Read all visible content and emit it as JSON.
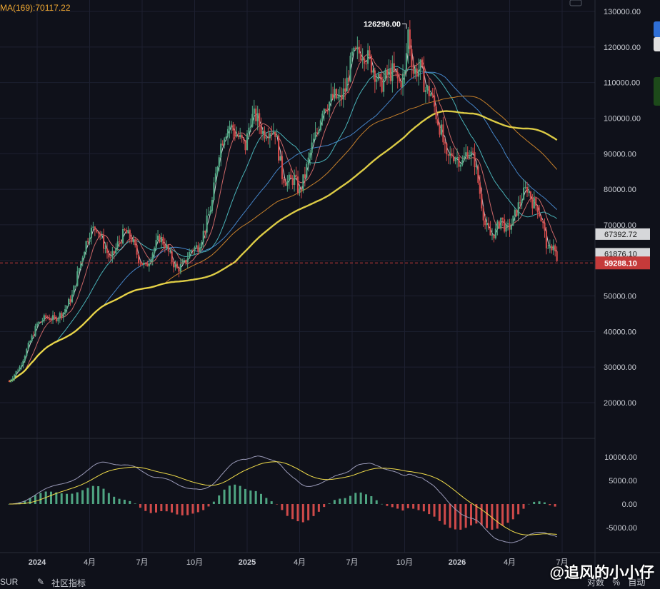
{
  "header": {
    "ma_label": "MA(169):70117.22"
  },
  "right_axis_controls": {
    "scale_labels": [
      "对数",
      "%",
      "自动"
    ]
  },
  "bottom_bar": {
    "indicator_fragment": "SUR",
    "community_label": "社区指标"
  },
  "watermark": {
    "text": "@追风的小小仔"
  },
  "colors": {
    "up": "#4fa582",
    "down": "#d04a4a",
    "price_tag": "#c53a3a",
    "label_tag": "#d6d7da"
  },
  "chart_data": [
    {
      "type": "candlestick",
      "title": "",
      "y_ticks": [
        20000,
        30000,
        40000,
        50000,
        60000,
        70000,
        80000,
        90000,
        100000,
        110000,
        120000,
        130000
      ],
      "y_tick_labels": [
        "20000.00",
        "30000.00",
        "40000.00",
        "50000.00",
        "60000.00",
        "70000.00",
        "80000.00",
        "90000.00",
        "100000.00",
        "110000.00",
        "120000.00",
        "130000.00"
      ],
      "ylim": [
        10000,
        132000
      ],
      "x_tick_labels": [
        "2024",
        "4月",
        "7月",
        "10月",
        "2025",
        "4月",
        "7月",
        "10月",
        "2026",
        "4月",
        "7月"
      ],
      "x_ticks_month_index": [
        0,
        3,
        6,
        9,
        12,
        15,
        18,
        21,
        24,
        27,
        30
      ],
      "current_price": 59288.1,
      "current_price_label": "59288.10",
      "high_marker": {
        "value": 126296.0,
        "label": "126296.00",
        "month_index": 21.1
      },
      "price_labels": [
        {
          "value": 67392.72,
          "label": "67392.72"
        },
        {
          "value": 61876.1,
          "label": "61876.10"
        }
      ],
      "price_path": [
        [
          -1.6,
          26000
        ],
        [
          -1.0,
          30000
        ],
        [
          -0.5,
          36000
        ],
        [
          0,
          42000
        ],
        [
          0.5,
          44000
        ],
        [
          1,
          43500
        ],
        [
          1.5,
          45500
        ],
        [
          2,
          50000
        ],
        [
          2.3,
          56000
        ],
        [
          2.7,
          63500
        ],
        [
          3.0,
          68000
        ],
        [
          3.4,
          69500
        ],
        [
          3.8,
          64500
        ],
        [
          4.2,
          60000
        ],
        [
          4.6,
          64500
        ],
        [
          5.0,
          68000
        ],
        [
          5.4,
          66000
        ],
        [
          5.8,
          60500
        ],
        [
          6.2,
          58000
        ],
        [
          6.6,
          62500
        ],
        [
          7.0,
          66500
        ],
        [
          7.3,
          64500
        ],
        [
          7.7,
          60000
        ],
        [
          8.0,
          57500
        ],
        [
          8.4,
          59000
        ],
        [
          8.8,
          63000
        ],
        [
          9.2,
          64000
        ],
        [
          9.6,
          69000
        ],
        [
          10.0,
          76500
        ],
        [
          10.4,
          91000
        ],
        [
          10.7,
          96000
        ],
        [
          11.0,
          98000
        ],
        [
          11.3,
          96000
        ],
        [
          11.6,
          94000
        ],
        [
          11.9,
          92000
        ],
        [
          12.2,
          100000
        ],
        [
          12.5,
          100500
        ],
        [
          12.9,
          96000
        ],
        [
          13.3,
          97000
        ],
        [
          13.6,
          96500
        ],
        [
          14.0,
          84000
        ],
        [
          14.3,
          82000
        ],
        [
          14.7,
          83000
        ],
        [
          15.0,
          79000
        ],
        [
          15.3,
          84000
        ],
        [
          15.7,
          92000
        ],
        [
          16.0,
          96000
        ],
        [
          16.3,
          103000
        ],
        [
          16.7,
          104500
        ],
        [
          17.0,
          106000
        ],
        [
          17.3,
          105000
        ],
        [
          17.6,
          108000
        ],
        [
          18.0,
          117000
        ],
        [
          18.3,
          118000
        ],
        [
          18.6,
          119000
        ],
        [
          19.0,
          116000
        ],
        [
          19.3,
          113000
        ],
        [
          19.6,
          109000
        ],
        [
          20.0,
          112000
        ],
        [
          20.3,
          113000
        ],
        [
          20.7,
          110000
        ],
        [
          21.0,
          112000
        ],
        [
          21.2,
          124500
        ],
        [
          21.5,
          113000
        ],
        [
          21.9,
          114000
        ],
        [
          22.2,
          108000
        ],
        [
          22.5,
          107000
        ],
        [
          22.8,
          101000
        ],
        [
          23.1,
          96000
        ],
        [
          23.4,
          88000
        ],
        [
          23.7,
          90000
        ],
        [
          24.0,
          89000
        ],
        [
          24.3,
          87500
        ],
        [
          24.6,
          91000
        ],
        [
          25.0,
          88000
        ],
        [
          25.3,
          79000
        ],
        [
          25.6,
          70000
        ],
        [
          25.9,
          67000
        ],
        [
          26.2,
          68000
        ],
        [
          26.5,
          72000
        ],
        [
          26.8,
          68500
        ],
        [
          27.1,
          70000
        ],
        [
          27.4,
          74000
        ],
        [
          27.7,
          78000
        ],
        [
          28.0,
          80500
        ],
        [
          28.3,
          76500
        ],
        [
          28.6,
          75000
        ],
        [
          28.9,
          70000
        ],
        [
          29.2,
          62000
        ],
        [
          29.5,
          65000
        ],
        [
          29.7,
          59300
        ]
      ],
      "moving_averages": [
        {
          "name": "MA(169)",
          "value": 70117.22,
          "color": "#f0a832"
        }
      ]
    },
    {
      "type": "histogram",
      "title": "",
      "y_ticks": [
        -5000,
        0,
        5000,
        10000
      ],
      "y_tick_labels": [
        "-5000.00",
        "0.00",
        "5000.00",
        "10000.00"
      ],
      "ylim": [
        -9800,
        11000
      ]
    }
  ]
}
